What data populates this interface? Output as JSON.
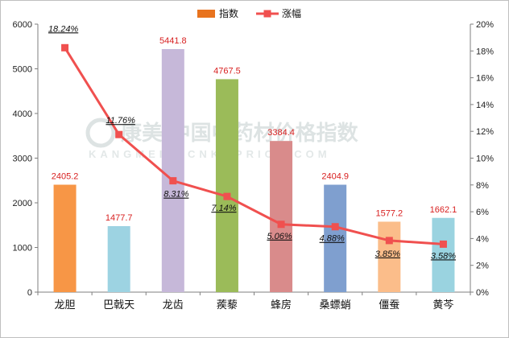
{
  "chart_data": {
    "type": "bar",
    "categories": [
      "龙胆",
      "巴戟天",
      "龙齿",
      "蒺藜",
      "蜂房",
      "桑螵蛸",
      "僵蚕",
      "黄芩"
    ],
    "series": [
      {
        "name": "指数",
        "type": "bar",
        "axis": "left",
        "values": [
          2405.2,
          1477.7,
          5441.8,
          4767.5,
          3384.4,
          2404.9,
          1577.2,
          1662.1
        ],
        "labels": [
          "2405.2",
          "1477.7",
          "5441.8",
          "4767.5",
          "3384.4",
          "2404.9",
          "1577.2",
          "1662.1"
        ],
        "colors": [
          "#f79646",
          "#9dd3e2",
          "#c6b8d9",
          "#9bbb59",
          "#d98b8b",
          "#7f9fcf",
          "#fbbd8a",
          "#9ad3e0"
        ]
      },
      {
        "name": "涨幅",
        "type": "line",
        "axis": "right",
        "values": [
          18.24,
          11.76,
          8.31,
          7.14,
          5.06,
          4.88,
          3.85,
          3.58
        ],
        "labels": [
          "18.24%",
          "11.76%",
          "8.31%",
          "7.14%",
          "5.06%",
          "4.88%",
          "3.85%",
          "3.58%"
        ],
        "color": "#f0504f"
      }
    ],
    "y_left": {
      "min": 0,
      "max": 6000,
      "step": 1000,
      "ticks": [
        "0",
        "1000",
        "2000",
        "3000",
        "4000",
        "5000",
        "6000"
      ]
    },
    "y_right": {
      "min": 0,
      "max": 20,
      "step": 2,
      "ticks": [
        "0%",
        "2%",
        "4%",
        "6%",
        "8%",
        "10%",
        "12%",
        "14%",
        "16%",
        "18%",
        "20%"
      ]
    },
    "legend": {
      "position": "top-center",
      "items": [
        "指数",
        "涨幅"
      ]
    },
    "grid": false,
    "watermark": {
      "main": "康美·中国中药材价格指数",
      "sub": "KANGMEI · CNKMPRICE.COM"
    }
  }
}
